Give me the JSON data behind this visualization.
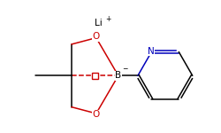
{
  "bg_color": "#ffffff",
  "atom_colors": {
    "B": "#000000",
    "O": "#cc0000",
    "N": "#0000bb",
    "C": "#000000",
    "Li": "#000000"
  },
  "bond_color": "#000000",
  "red_bond_color": "#cc0000",
  "blue_bond_color": "#0000bb",
  "figsize": [
    2.5,
    1.5
  ],
  "dpi": 100
}
